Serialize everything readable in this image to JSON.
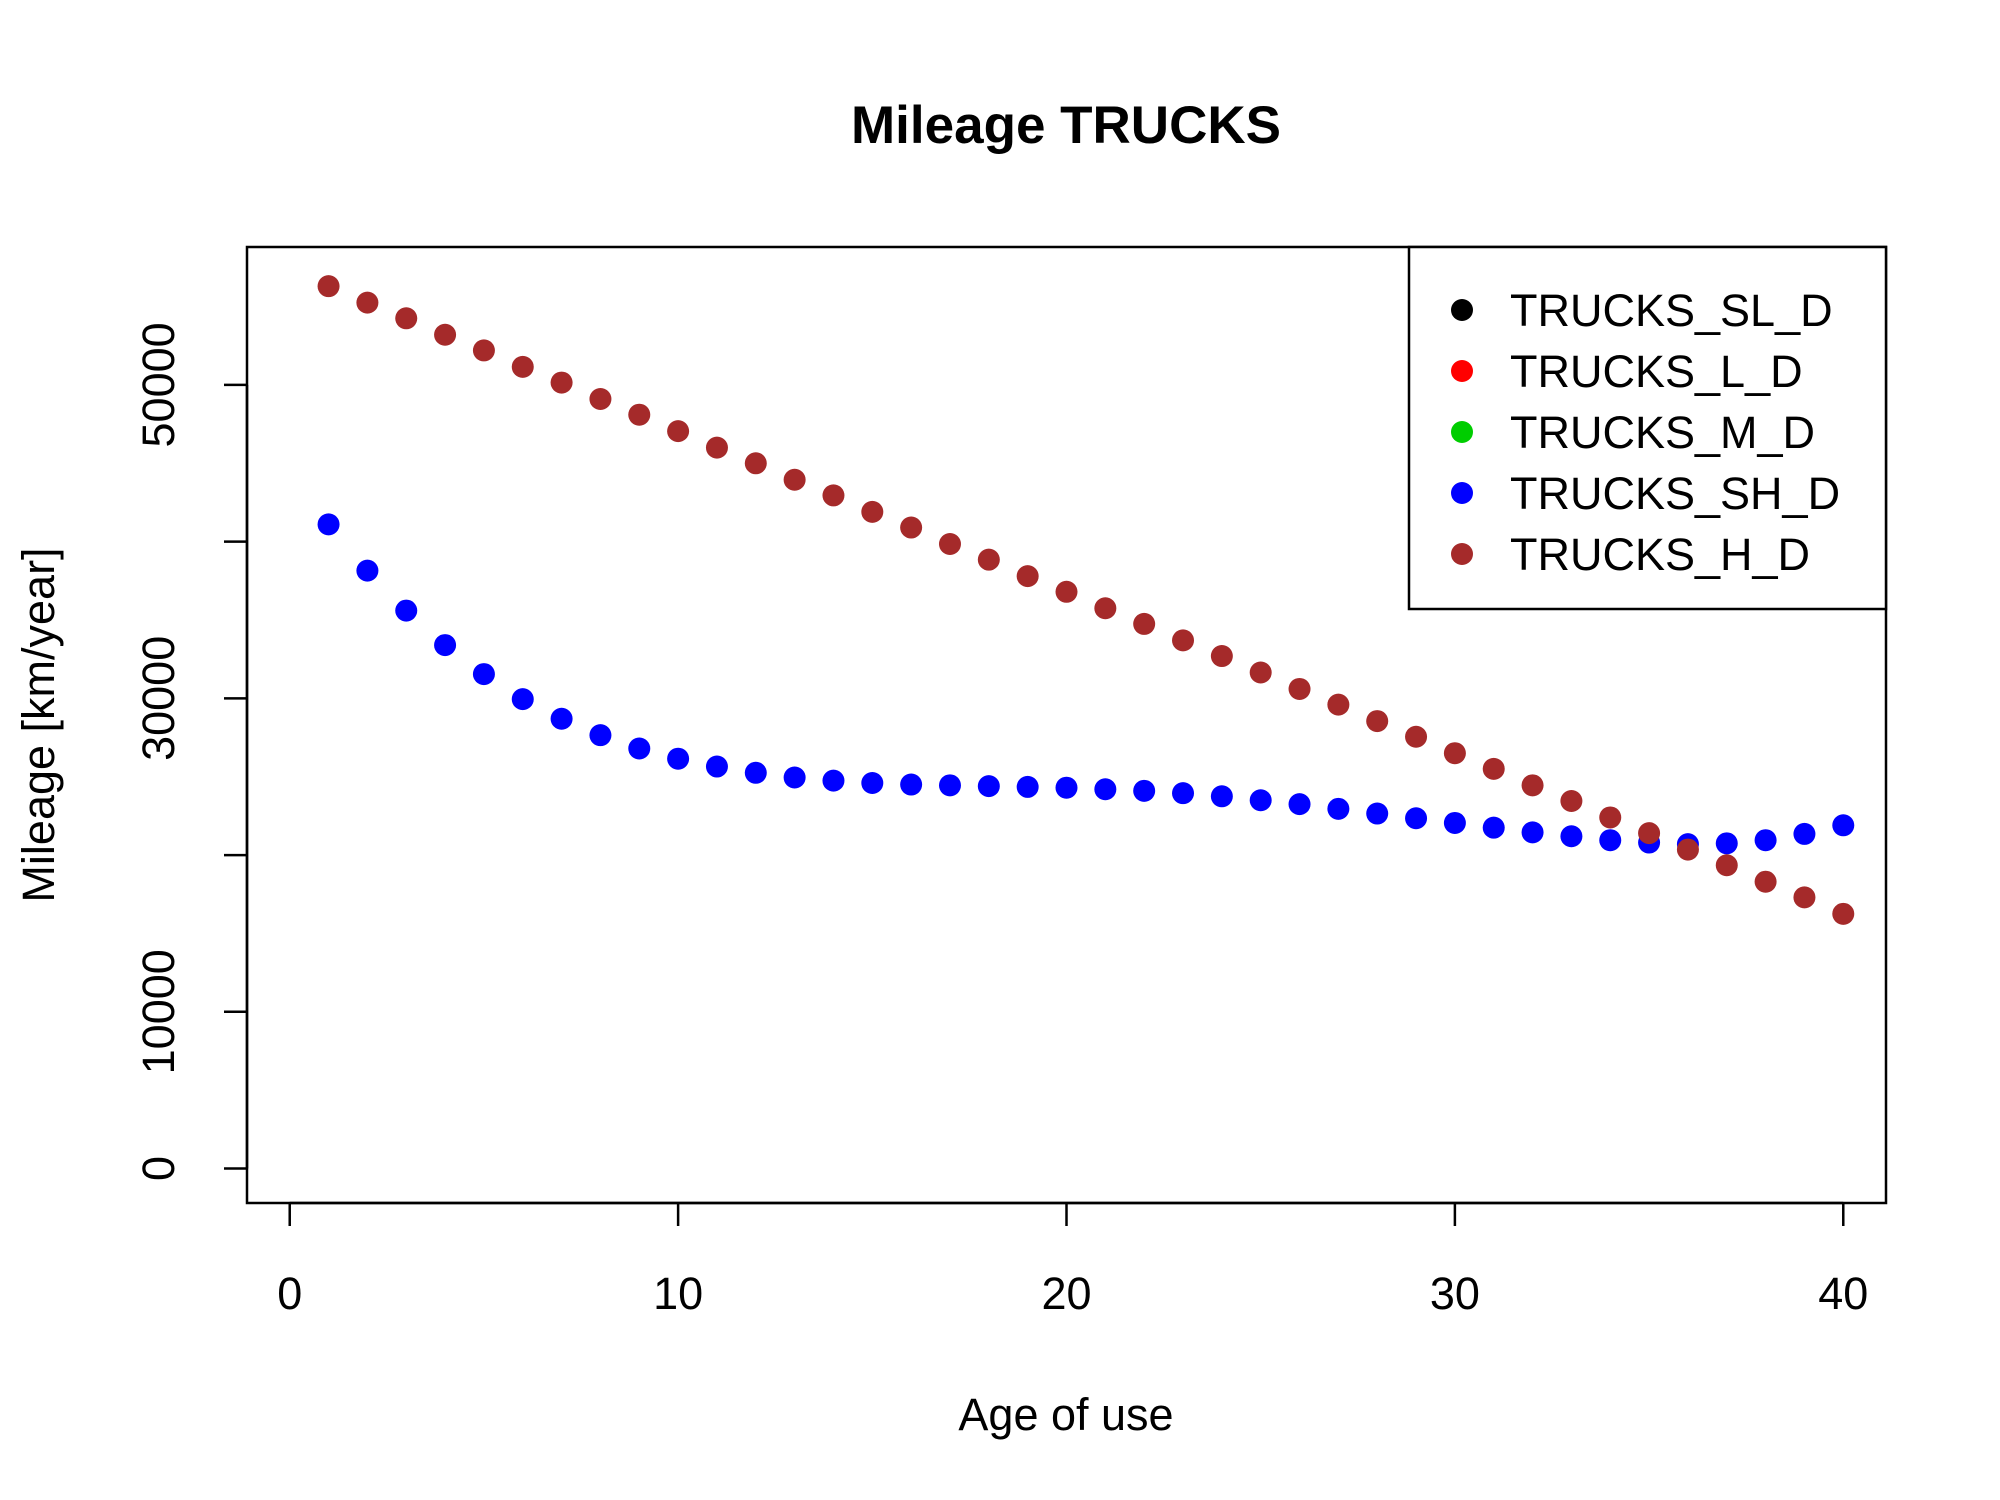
{
  "chart_data": {
    "type": "scatter",
    "title": "Mileage TRUCKS",
    "xlabel": "Age of use",
    "ylabel": "Mileage [km/year]",
    "xlim": [
      -1.1,
      41.1
    ],
    "ylim": [
      -2200,
      58800
    ],
    "xticks": [
      0,
      10,
      20,
      30,
      40
    ],
    "yticks": [
      0,
      10000,
      30000,
      50000
    ],
    "grid": false,
    "legend_position": "top-right",
    "series": [
      {
        "name": "TRUCKS_SL_D",
        "color": "#000000",
        "x": [],
        "y": []
      },
      {
        "name": "TRUCKS_L_D",
        "color": "#ff0000",
        "x": [],
        "y": []
      },
      {
        "name": "TRUCKS_M_D",
        "color": "#00cd00",
        "x": [],
        "y": []
      },
      {
        "name": "TRUCKS_SH_D",
        "color": "#0000ff",
        "x": [
          1,
          2,
          3,
          4,
          5,
          6,
          7,
          8,
          9,
          10,
          11,
          12,
          13,
          14,
          15,
          16,
          17,
          18,
          19,
          20,
          21,
          22,
          23,
          24,
          25,
          26,
          27,
          28,
          29,
          30,
          31,
          32,
          33,
          34,
          35,
          36,
          37,
          38,
          39,
          40
        ],
        "y": [
          41100,
          38150,
          35600,
          33400,
          31550,
          29950,
          28700,
          27650,
          26800,
          26150,
          25650,
          25250,
          24950,
          24750,
          24600,
          24500,
          24450,
          24400,
          24350,
          24300,
          24200,
          24100,
          23950,
          23750,
          23500,
          23250,
          22950,
          22650,
          22350,
          22050,
          21750,
          21450,
          21200,
          20950,
          20800,
          20700,
          20750,
          20950,
          21350,
          21900
        ]
      },
      {
        "name": "TRUCKS_H_D",
        "color": "#a52a2a",
        "x": [
          1,
          2,
          3,
          4,
          5,
          6,
          7,
          8,
          9,
          10,
          11,
          12,
          13,
          14,
          15,
          16,
          17,
          18,
          19,
          20,
          21,
          22,
          23,
          24,
          25,
          26,
          27,
          28,
          29,
          30,
          31,
          32,
          33,
          34,
          35,
          36,
          37,
          38,
          39,
          40
        ],
        "y": [
          56300,
          55250,
          54250,
          53200,
          52200,
          51150,
          50150,
          49100,
          48100,
          47050,
          46000,
          45000,
          43950,
          42950,
          41900,
          40900,
          39850,
          38850,
          37800,
          36800,
          35750,
          34750,
          33700,
          32700,
          31650,
          30600,
          29600,
          28550,
          27550,
          26500,
          25500,
          24450,
          23450,
          22400,
          21400,
          20350,
          19350,
          18300,
          17300,
          16250
        ]
      }
    ]
  }
}
